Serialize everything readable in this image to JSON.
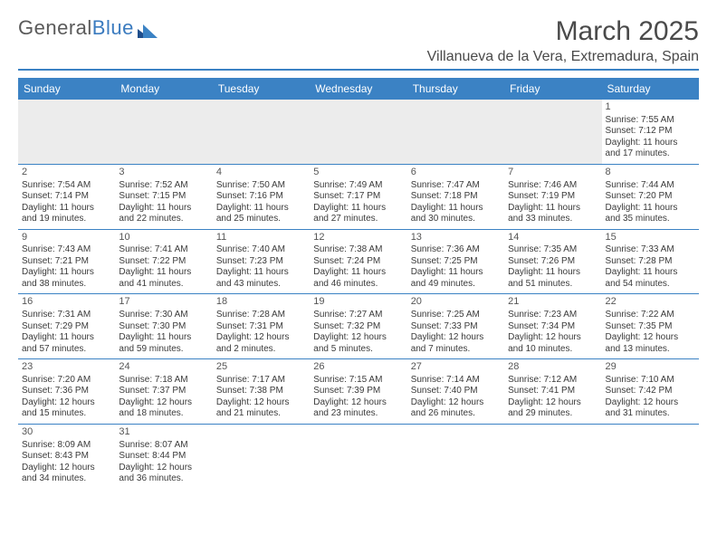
{
  "brand": {
    "part1": "General",
    "part2": "Blue"
  },
  "title": {
    "month": "March 2025",
    "location": "Villanueva de la Vera, Extremadura, Spain"
  },
  "colors": {
    "header_bg": "#3b82c4",
    "text": "#3a3a3a",
    "bg": "#ffffff",
    "blank_bg": "#ececec"
  },
  "days_of_week": [
    "Sunday",
    "Monday",
    "Tuesday",
    "Wednesday",
    "Thursday",
    "Friday",
    "Saturday"
  ],
  "weeks": [
    [
      null,
      null,
      null,
      null,
      null,
      null,
      {
        "n": "1",
        "sr": "Sunrise: 7:55 AM",
        "ss": "Sunset: 7:12 PM",
        "d1": "Daylight: 11 hours",
        "d2": "and 17 minutes."
      }
    ],
    [
      {
        "n": "2",
        "sr": "Sunrise: 7:54 AM",
        "ss": "Sunset: 7:14 PM",
        "d1": "Daylight: 11 hours",
        "d2": "and 19 minutes."
      },
      {
        "n": "3",
        "sr": "Sunrise: 7:52 AM",
        "ss": "Sunset: 7:15 PM",
        "d1": "Daylight: 11 hours",
        "d2": "and 22 minutes."
      },
      {
        "n": "4",
        "sr": "Sunrise: 7:50 AM",
        "ss": "Sunset: 7:16 PM",
        "d1": "Daylight: 11 hours",
        "d2": "and 25 minutes."
      },
      {
        "n": "5",
        "sr": "Sunrise: 7:49 AM",
        "ss": "Sunset: 7:17 PM",
        "d1": "Daylight: 11 hours",
        "d2": "and 27 minutes."
      },
      {
        "n": "6",
        "sr": "Sunrise: 7:47 AM",
        "ss": "Sunset: 7:18 PM",
        "d1": "Daylight: 11 hours",
        "d2": "and 30 minutes."
      },
      {
        "n": "7",
        "sr": "Sunrise: 7:46 AM",
        "ss": "Sunset: 7:19 PM",
        "d1": "Daylight: 11 hours",
        "d2": "and 33 minutes."
      },
      {
        "n": "8",
        "sr": "Sunrise: 7:44 AM",
        "ss": "Sunset: 7:20 PM",
        "d1": "Daylight: 11 hours",
        "d2": "and 35 minutes."
      }
    ],
    [
      {
        "n": "9",
        "sr": "Sunrise: 7:43 AM",
        "ss": "Sunset: 7:21 PM",
        "d1": "Daylight: 11 hours",
        "d2": "and 38 minutes."
      },
      {
        "n": "10",
        "sr": "Sunrise: 7:41 AM",
        "ss": "Sunset: 7:22 PM",
        "d1": "Daylight: 11 hours",
        "d2": "and 41 minutes."
      },
      {
        "n": "11",
        "sr": "Sunrise: 7:40 AM",
        "ss": "Sunset: 7:23 PM",
        "d1": "Daylight: 11 hours",
        "d2": "and 43 minutes."
      },
      {
        "n": "12",
        "sr": "Sunrise: 7:38 AM",
        "ss": "Sunset: 7:24 PM",
        "d1": "Daylight: 11 hours",
        "d2": "and 46 minutes."
      },
      {
        "n": "13",
        "sr": "Sunrise: 7:36 AM",
        "ss": "Sunset: 7:25 PM",
        "d1": "Daylight: 11 hours",
        "d2": "and 49 minutes."
      },
      {
        "n": "14",
        "sr": "Sunrise: 7:35 AM",
        "ss": "Sunset: 7:26 PM",
        "d1": "Daylight: 11 hours",
        "d2": "and 51 minutes."
      },
      {
        "n": "15",
        "sr": "Sunrise: 7:33 AM",
        "ss": "Sunset: 7:28 PM",
        "d1": "Daylight: 11 hours",
        "d2": "and 54 minutes."
      }
    ],
    [
      {
        "n": "16",
        "sr": "Sunrise: 7:31 AM",
        "ss": "Sunset: 7:29 PM",
        "d1": "Daylight: 11 hours",
        "d2": "and 57 minutes."
      },
      {
        "n": "17",
        "sr": "Sunrise: 7:30 AM",
        "ss": "Sunset: 7:30 PM",
        "d1": "Daylight: 11 hours",
        "d2": "and 59 minutes."
      },
      {
        "n": "18",
        "sr": "Sunrise: 7:28 AM",
        "ss": "Sunset: 7:31 PM",
        "d1": "Daylight: 12 hours",
        "d2": "and 2 minutes."
      },
      {
        "n": "19",
        "sr": "Sunrise: 7:27 AM",
        "ss": "Sunset: 7:32 PM",
        "d1": "Daylight: 12 hours",
        "d2": "and 5 minutes."
      },
      {
        "n": "20",
        "sr": "Sunrise: 7:25 AM",
        "ss": "Sunset: 7:33 PM",
        "d1": "Daylight: 12 hours",
        "d2": "and 7 minutes."
      },
      {
        "n": "21",
        "sr": "Sunrise: 7:23 AM",
        "ss": "Sunset: 7:34 PM",
        "d1": "Daylight: 12 hours",
        "d2": "and 10 minutes."
      },
      {
        "n": "22",
        "sr": "Sunrise: 7:22 AM",
        "ss": "Sunset: 7:35 PM",
        "d1": "Daylight: 12 hours",
        "d2": "and 13 minutes."
      }
    ],
    [
      {
        "n": "23",
        "sr": "Sunrise: 7:20 AM",
        "ss": "Sunset: 7:36 PM",
        "d1": "Daylight: 12 hours",
        "d2": "and 15 minutes."
      },
      {
        "n": "24",
        "sr": "Sunrise: 7:18 AM",
        "ss": "Sunset: 7:37 PM",
        "d1": "Daylight: 12 hours",
        "d2": "and 18 minutes."
      },
      {
        "n": "25",
        "sr": "Sunrise: 7:17 AM",
        "ss": "Sunset: 7:38 PM",
        "d1": "Daylight: 12 hours",
        "d2": "and 21 minutes."
      },
      {
        "n": "26",
        "sr": "Sunrise: 7:15 AM",
        "ss": "Sunset: 7:39 PM",
        "d1": "Daylight: 12 hours",
        "d2": "and 23 minutes."
      },
      {
        "n": "27",
        "sr": "Sunrise: 7:14 AM",
        "ss": "Sunset: 7:40 PM",
        "d1": "Daylight: 12 hours",
        "d2": "and 26 minutes."
      },
      {
        "n": "28",
        "sr": "Sunrise: 7:12 AM",
        "ss": "Sunset: 7:41 PM",
        "d1": "Daylight: 12 hours",
        "d2": "and 29 minutes."
      },
      {
        "n": "29",
        "sr": "Sunrise: 7:10 AM",
        "ss": "Sunset: 7:42 PM",
        "d1": "Daylight: 12 hours",
        "d2": "and 31 minutes."
      }
    ],
    [
      {
        "n": "30",
        "sr": "Sunrise: 8:09 AM",
        "ss": "Sunset: 8:43 PM",
        "d1": "Daylight: 12 hours",
        "d2": "and 34 minutes."
      },
      {
        "n": "31",
        "sr": "Sunrise: 8:07 AM",
        "ss": "Sunset: 8:44 PM",
        "d1": "Daylight: 12 hours",
        "d2": "and 36 minutes."
      },
      null,
      null,
      null,
      null,
      null
    ]
  ]
}
